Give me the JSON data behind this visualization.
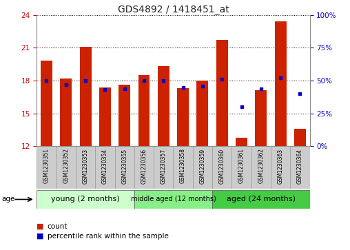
{
  "title": "GDS4892 / 1418451_at",
  "samples": [
    "GSM1230351",
    "GSM1230352",
    "GSM1230353",
    "GSM1230354",
    "GSM1230355",
    "GSM1230356",
    "GSM1230357",
    "GSM1230358",
    "GSM1230359",
    "GSM1230360",
    "GSM1230361",
    "GSM1230362",
    "GSM1230363",
    "GSM1230364"
  ],
  "counts": [
    19.8,
    18.2,
    21.1,
    17.4,
    17.6,
    18.5,
    19.3,
    17.3,
    18.0,
    21.7,
    12.8,
    17.1,
    23.4,
    13.6
  ],
  "percentiles": [
    50,
    47,
    50,
    43,
    44,
    50,
    50,
    45,
    46,
    51,
    30,
    44,
    52,
    40
  ],
  "ymin": 12,
  "ymax": 24,
  "yticks": [
    12,
    15,
    18,
    21,
    24
  ],
  "right_yticks": [
    0,
    25,
    50,
    75,
    100
  ],
  "bar_color": "#cc2200",
  "dot_color": "#0000cc",
  "groups": [
    {
      "label": "young (2 months)",
      "start": 0,
      "end": 5,
      "color": "#ccffcc"
    },
    {
      "label": "middle aged (12 months)",
      "start": 5,
      "end": 9,
      "color": "#88ee88"
    },
    {
      "label": "aged (24 months)",
      "start": 9,
      "end": 14,
      "color": "#44cc44"
    }
  ],
  "right_ylabel_color": "#0000cc",
  "left_ylabel_color": "#cc0000",
  "background_color": "#ffffff",
  "grid_color": "#000000",
  "tick_label_bg": "#cccccc"
}
